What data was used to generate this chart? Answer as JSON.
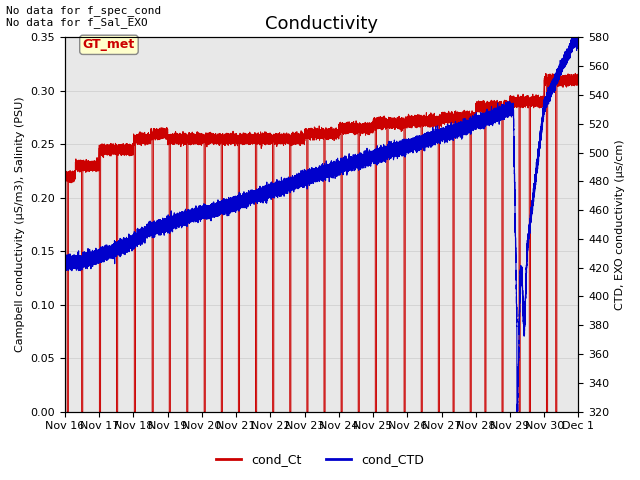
{
  "title": "Conductivity",
  "ylabel_left": "Campbell conductivity (µS/m3), Salinity (PSU)",
  "ylabel_right": "CTD, EXO conductivity (µs/cm)",
  "ylim_left": [
    0.0,
    0.35
  ],
  "ylim_right": [
    320,
    580
  ],
  "yticks_left": [
    0.0,
    0.05,
    0.1,
    0.15,
    0.2,
    0.25,
    0.3,
    0.35
  ],
  "yticks_right": [
    320,
    340,
    360,
    380,
    400,
    420,
    440,
    460,
    480,
    500,
    520,
    540,
    560,
    580
  ],
  "xtick_labels": [
    "Nov 16",
    "Nov 17",
    "Nov 18",
    "Nov 19",
    "Nov 20",
    "Nov 21",
    "Nov 22",
    "Nov 23",
    "Nov 24",
    "Nov 25",
    "Nov 26",
    "Nov 27",
    "Nov 28",
    "Nov 29",
    "Nov 30",
    "Dec 1"
  ],
  "annotation_top": "No data for f_spec_cond\nNo data for f_Sal_EXO",
  "gt_met_label": "GT_met",
  "legend_entries": [
    "cond_Ct",
    "cond_CTD"
  ],
  "legend_colors": [
    "#cc0000",
    "#0000cc"
  ],
  "fig_bg": "#ffffff",
  "axes_bg": "#e8e8e8",
  "grid_color": "#cccccc",
  "title_fontsize": 13,
  "label_fontsize": 8,
  "tick_fontsize": 8,
  "annot_fontsize": 8
}
